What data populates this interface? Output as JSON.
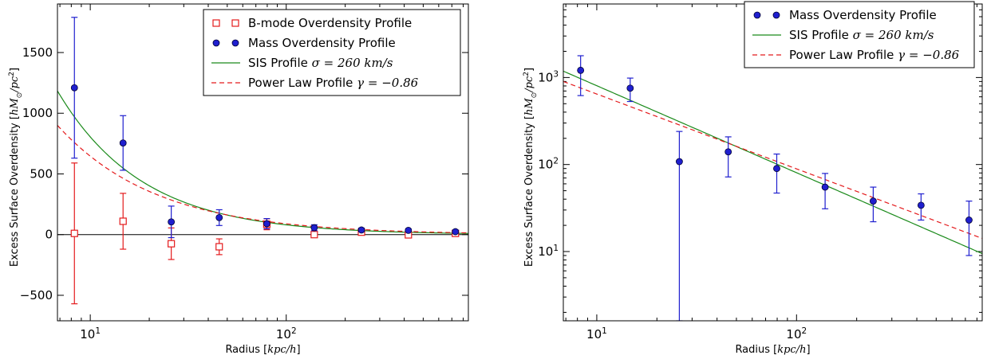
{
  "chart_data": [
    {
      "type": "scatter",
      "title": "",
      "xlabel": "Radius [kpc/h]",
      "ylabel": "Excess Surface Overdensity [hM⊙/pc²]",
      "xscale": "log",
      "yscale": "linear",
      "xlim": [
        6.8,
        850
      ],
      "ylim": [
        -710,
        1900
      ],
      "xticks": [
        {
          "v": 10,
          "base": "10",
          "exp": "1"
        },
        {
          "v": 100,
          "base": "10",
          "exp": "2"
        }
      ],
      "yticks": [
        {
          "v": -500,
          "label": "−500"
        },
        {
          "v": 0,
          "label": "0"
        },
        {
          "v": 500,
          "label": "500"
        },
        {
          "v": 1000,
          "label": "1000"
        },
        {
          "v": 1500,
          "label": "1500"
        }
      ],
      "zero_line": true,
      "legend_position": "top-right",
      "series": [
        {
          "name": "B-mode Overdensity Profile",
          "kind": "points",
          "marker": "open-square",
          "color": "#e41a1c",
          "x": [
            8.3,
            14.7,
            25.9,
            45.5,
            79.6,
            139,
            242,
            420,
            730
          ],
          "y": [
            10,
            110,
            -75,
            -100,
            85,
            0,
            20,
            -2,
            10
          ],
          "yerr": [
            580,
            230,
            130,
            65,
            45,
            20,
            15,
            10,
            8
          ]
        },
        {
          "name": "Mass Overdensity Profile",
          "kind": "points",
          "marker": "filled-circle",
          "color": "#1f1fcf",
          "x": [
            8.3,
            14.7,
            25.9,
            45.5,
            79.6,
            139,
            242,
            420,
            730
          ],
          "y": [
            1210,
            755,
            105,
            140,
            90,
            57,
            38,
            35,
            24
          ],
          "yerr": [
            580,
            225,
            130,
            65,
            42,
            24,
            16,
            12,
            14
          ]
        },
        {
          "name": "SIS Profile",
          "name_math": "σ = 260 km/s",
          "kind": "sis",
          "color": "#1a8a1a",
          "amplitude": 8050,
          "exponent": -1
        },
        {
          "name": "Power Law Profile",
          "name_math": "γ = −0.86",
          "kind": "powerlaw",
          "color": "#e41a1c",
          "dashed": true,
          "amplitude": 4680,
          "exponent": -0.86
        }
      ]
    },
    {
      "type": "scatter",
      "title": "",
      "xlabel": "Radius [kpc/h]",
      "ylabel": "Excess Surface Overdensity [hM⊙/pc²]",
      "xscale": "log",
      "yscale": "log",
      "xlim": [
        6.8,
        850
      ],
      "ylim": [
        1.6,
        7000
      ],
      "xticks": [
        {
          "v": 10,
          "base": "10",
          "exp": "1"
        },
        {
          "v": 100,
          "base": "10",
          "exp": "2"
        }
      ],
      "yticks": [
        {
          "v": 10,
          "base": "10",
          "exp": "1"
        },
        {
          "v": 100,
          "base": "10",
          "exp": "2"
        },
        {
          "v": 1000,
          "base": "10",
          "exp": "3"
        }
      ],
      "zero_line": false,
      "legend_position": "top-right",
      "series": [
        {
          "name": "Mass Overdensity Profile",
          "kind": "points",
          "marker": "filled-circle",
          "color": "#1f1fcf",
          "x": [
            8.3,
            14.7,
            25.9,
            45.5,
            79.6,
            139,
            242,
            420,
            730
          ],
          "y": [
            1210,
            755,
            108,
            140,
            90,
            55,
            38,
            34,
            23
          ],
          "ylo": [
            620,
            530,
            1.6,
            72,
            47,
            31,
            22,
            23,
            9
          ],
          "yhi": [
            1780,
            985,
            240,
            208,
            132,
            79,
            55,
            46,
            38
          ]
        },
        {
          "name": "SIS Profile",
          "name_math": "σ = 260 km/s",
          "kind": "sis",
          "color": "#1a8a1a",
          "amplitude": 8050,
          "exponent": -1
        },
        {
          "name": "Power Law Profile",
          "name_math": "γ = −0.86",
          "kind": "powerlaw",
          "color": "#e41a1c",
          "dashed": true,
          "amplitude": 4680,
          "exponent": -0.86
        }
      ]
    }
  ]
}
